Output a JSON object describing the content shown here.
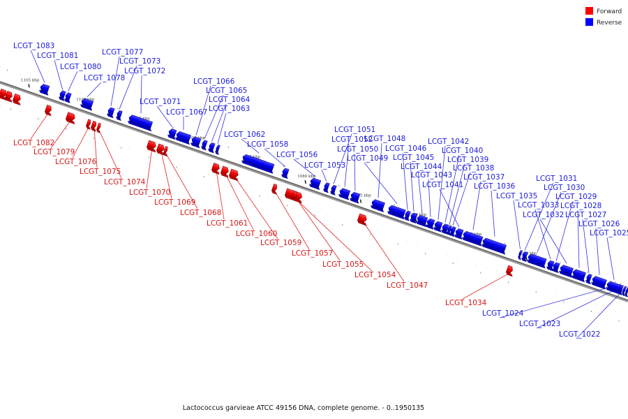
{
  "legend": [
    {
      "label": "Forward",
      "color": "#ff0000"
    },
    {
      "label": "Reverse",
      "color": "#0000ff"
    }
  ],
  "caption": "Lactococcus garvieae ATCC 49156 DNA, complete genome. - 0..1950135",
  "axis": {
    "ticks": [
      {
        "label": "1105 kbp",
        "kbp": 1105
      },
      {
        "label": "1100 kbp",
        "kbp": 1100
      },
      {
        "label": "1095 kbp",
        "kbp": 1095
      },
      {
        "label": "1090 kbp",
        "kbp": 1090
      },
      {
        "label": "1085 kbp",
        "kbp": 1085
      },
      {
        "label": "1080 kbp",
        "kbp": 1080
      },
      {
        "label": "1075 kbp",
        "kbp": 1075
      },
      {
        "label": "1070 kbp",
        "kbp": 1070
      },
      {
        "label": "1065 kbp",
        "kbp": 1065
      },
      {
        "label": "1060 kbp",
        "kbp": 1060
      }
    ]
  },
  "genes": [
    {
      "name": "LCGT_1083",
      "strand": "reverse"
    },
    {
      "name": "LCGT_1081",
      "strand": "reverse"
    },
    {
      "name": "LCGT_1080",
      "strand": "reverse"
    },
    {
      "name": "LCGT_1078",
      "strand": "reverse"
    },
    {
      "name": "LCGT_1077",
      "strand": "reverse"
    },
    {
      "name": "LCGT_1073",
      "strand": "reverse"
    },
    {
      "name": "LCGT_1072",
      "strand": "reverse"
    },
    {
      "name": "LCGT_1071",
      "strand": "reverse"
    },
    {
      "name": "LCGT_1067",
      "strand": "reverse"
    },
    {
      "name": "LCGT_1066",
      "strand": "reverse"
    },
    {
      "name": "LCGT_1065",
      "strand": "reverse"
    },
    {
      "name": "LCGT_1064",
      "strand": "reverse"
    },
    {
      "name": "LCGT_1063",
      "strand": "reverse"
    },
    {
      "name": "LCGT_1062",
      "strand": "reverse"
    },
    {
      "name": "LCGT_1058",
      "strand": "reverse"
    },
    {
      "name": "LCGT_1056",
      "strand": "reverse"
    },
    {
      "name": "LCGT_1053",
      "strand": "reverse"
    },
    {
      "name": "LCGT_1051",
      "strand": "reverse"
    },
    {
      "name": "LCGT_1052",
      "strand": "reverse"
    },
    {
      "name": "LCGT_1050",
      "strand": "reverse"
    },
    {
      "name": "LCGT_1048",
      "strand": "reverse"
    },
    {
      "name": "LCGT_1049",
      "strand": "reverse"
    },
    {
      "name": "LCGT_1046",
      "strand": "reverse"
    },
    {
      "name": "LCGT_1045",
      "strand": "reverse"
    },
    {
      "name": "LCGT_1044",
      "strand": "reverse"
    },
    {
      "name": "LCGT_1043",
      "strand": "reverse"
    },
    {
      "name": "LCGT_1042",
      "strand": "reverse"
    },
    {
      "name": "LCGT_1040",
      "strand": "reverse"
    },
    {
      "name": "LCGT_1039",
      "strand": "reverse"
    },
    {
      "name": "LCGT_1038",
      "strand": "reverse"
    },
    {
      "name": "LCGT_1041",
      "strand": "reverse"
    },
    {
      "name": "LCGT_1037",
      "strand": "reverse"
    },
    {
      "name": "LCGT_1036",
      "strand": "reverse"
    },
    {
      "name": "LCGT_1035",
      "strand": "reverse"
    },
    {
      "name": "LCGT_1031",
      "strand": "reverse"
    },
    {
      "name": "LCGT_1030",
      "strand": "reverse"
    },
    {
      "name": "LCGT_1033",
      "strand": "reverse"
    },
    {
      "name": "LCGT_1029",
      "strand": "reverse"
    },
    {
      "name": "LCGT_1032",
      "strand": "reverse"
    },
    {
      "name": "LCGT_1028",
      "strand": "reverse"
    },
    {
      "name": "LCGT_1027",
      "strand": "reverse"
    },
    {
      "name": "LCGT_1026",
      "strand": "reverse"
    },
    {
      "name": "LCGT_1025",
      "strand": "reverse"
    },
    {
      "name": "LCGT_1024",
      "strand": "reverse"
    },
    {
      "name": "LCGT_1023",
      "strand": "reverse"
    },
    {
      "name": "LCGT_1022",
      "strand": "reverse"
    },
    {
      "name": "LCGT_1082",
      "strand": "forward"
    },
    {
      "name": "LCGT_1079",
      "strand": "forward"
    },
    {
      "name": "LCGT_1076",
      "strand": "forward"
    },
    {
      "name": "LCGT_1075",
      "strand": "forward"
    },
    {
      "name": "LCGT_1074",
      "strand": "forward"
    },
    {
      "name": "LCGT_1070",
      "strand": "forward"
    },
    {
      "name": "LCGT_1069",
      "strand": "forward"
    },
    {
      "name": "LCGT_1068",
      "strand": "forward"
    },
    {
      "name": "LCGT_1061",
      "strand": "forward"
    },
    {
      "name": "LCGT_1060",
      "strand": "forward"
    },
    {
      "name": "LCGT_1059",
      "strand": "forward"
    },
    {
      "name": "LCGT_1057",
      "strand": "forward"
    },
    {
      "name": "LCGT_1055",
      "strand": "forward"
    },
    {
      "name": "LCGT_1054",
      "strand": "forward"
    },
    {
      "name": "LCGT_1047",
      "strand": "forward"
    },
    {
      "name": "LCGT_1034",
      "strand": "forward"
    }
  ]
}
